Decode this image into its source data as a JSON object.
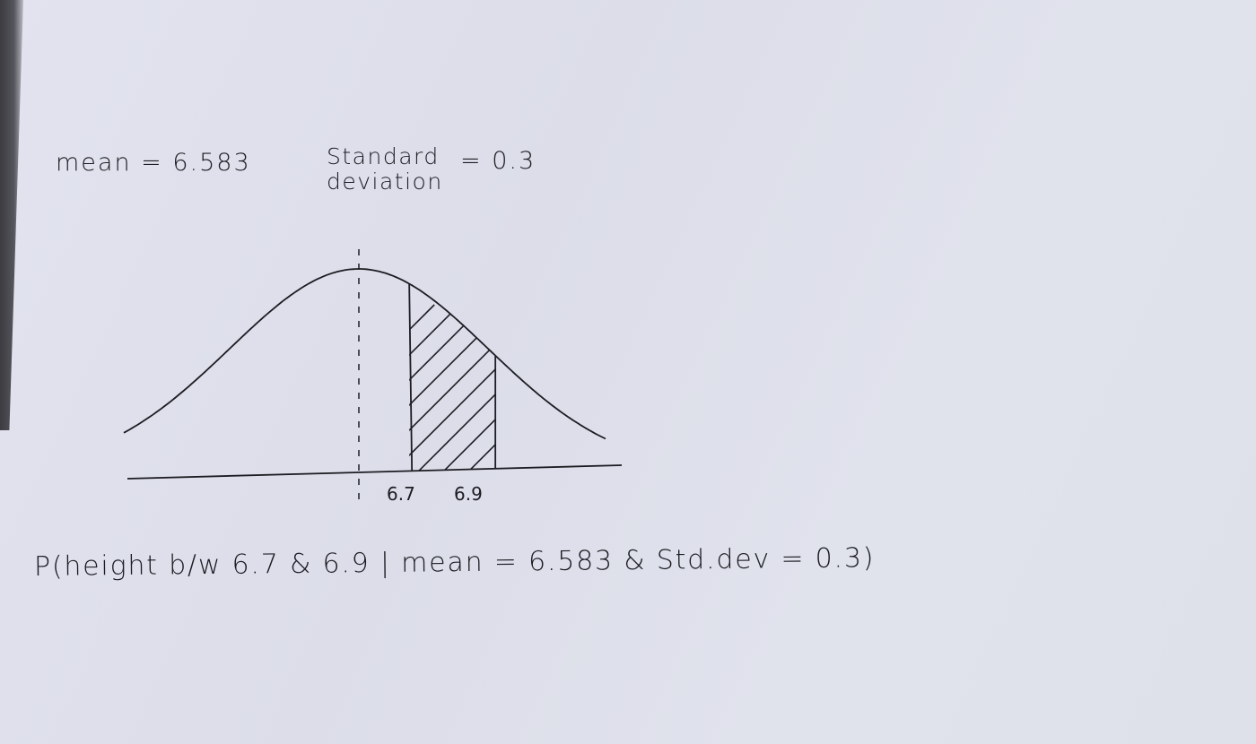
{
  "annotations": {
    "mean_text": "mean = 6.583",
    "std_text_line1": "Standard",
    "std_text_line2": "deviation",
    "std_value_text": "= 0.3",
    "formula_text": "P(height b/w 6.7 & 6.9 | mean = 6.583 & Std.dev = 0.3)"
  },
  "diagram": {
    "type": "normal-distribution-sketch",
    "mean": 6.583,
    "std_dev": 0.3,
    "shaded_interval": [
      6.7,
      6.9
    ],
    "tick_labels": [
      "6.7",
      "6.9"
    ],
    "ink_color": "#1c1c22",
    "paper_color": "#e0e1ec"
  }
}
